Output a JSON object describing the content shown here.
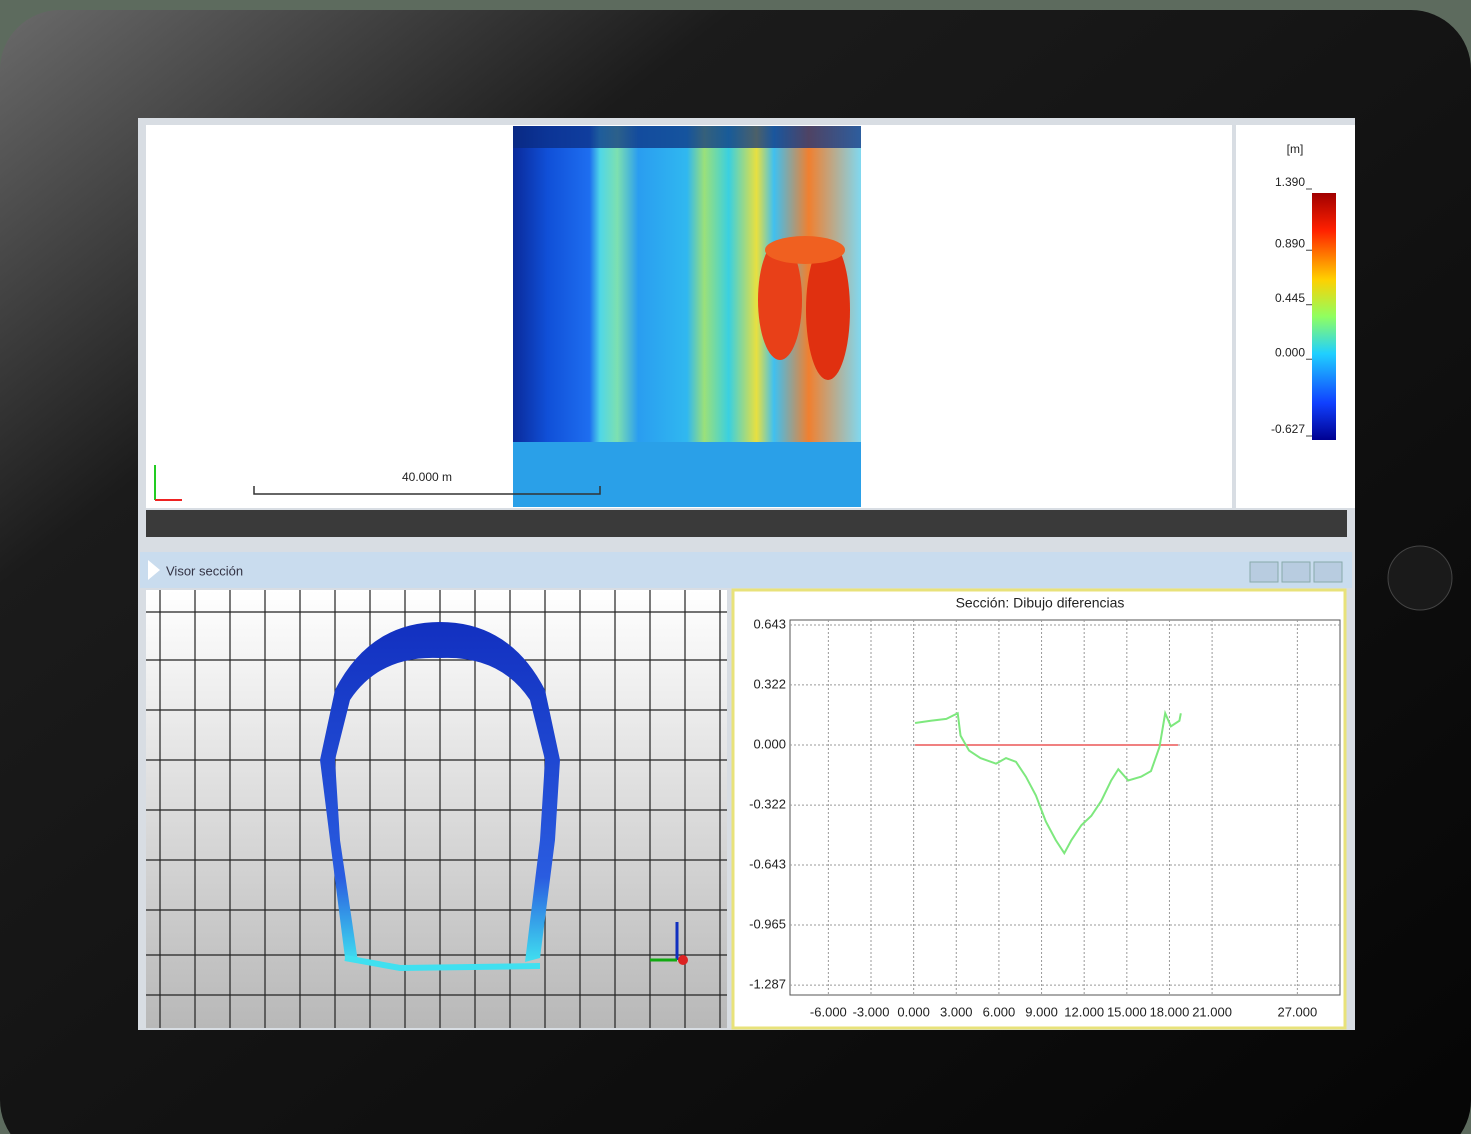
{
  "colorbar": {
    "unit": "[m]",
    "lim": [
      -0.627,
      1.39
    ],
    "ticks": [
      {
        "value": 1.39,
        "label": "1.390"
      },
      {
        "value": 0.89,
        "label": "0.890"
      },
      0.445,
      {
        "value": 0,
        "label": "0.000"
      },
      -0.627
    ]
  },
  "map_view": {
    "scale_bar": "40.000 m"
  },
  "section_viewer": {
    "title": "Visor sección"
  },
  "chart_data": {
    "type": "line",
    "title": "Sección: Dibujo diferencias",
    "xlim": [
      -8.7,
      30
    ],
    "ylim": [
      -1.34,
      0.67
    ],
    "xticks": [
      {
        "value": -6,
        "label": "-6.000"
      },
      {
        "value": -3,
        "label": "-3.000"
      },
      {
        "value": 0,
        "label": "0.000"
      },
      {
        "value": 3,
        "label": "3.000"
      },
      {
        "value": 6,
        "label": "6.000"
      },
      {
        "value": 9,
        "label": "9.000"
      },
      {
        "value": 12,
        "label": "12.000"
      },
      {
        "value": 15,
        "label": "15.000"
      },
      {
        "value": 18,
        "label": "18.000"
      },
      {
        "value": 21,
        "label": "21.000"
      },
      {
        "value": 27,
        "label": "27.000"
      }
    ],
    "yticks": [
      0.643,
      0.322,
      {
        "value": 0,
        "label": "0.000"
      },
      -0.322,
      -0.643,
      -0.965,
      -1.287
    ],
    "grid": true,
    "series": [
      {
        "color": "#7ee87e",
        "x": [
          0.1,
          1.2,
          2.3,
          3.1,
          3.3,
          3.9,
          4.7,
          5.8,
          6.5,
          7.2,
          7.9,
          8.6,
          9.3,
          10.0,
          10.6,
          11.1,
          11.8,
          12.5,
          13.2,
          13.9,
          14.4,
          15.1,
          16.0,
          16.7,
          17.3,
          17.7,
          18.1,
          18.7,
          18.8
        ],
        "values": [
          0.118,
          0.13,
          0.14,
          0.17,
          0.05,
          -0.03,
          -0.07,
          -0.1,
          -0.07,
          -0.09,
          -0.17,
          -0.27,
          -0.41,
          -0.51,
          -0.58,
          -0.51,
          -0.43,
          -0.38,
          -0.3,
          -0.19,
          -0.13,
          -0.19,
          -0.17,
          -0.14,
          -0.01,
          0.17,
          0.1,
          0.13,
          0.17
        ]
      },
      {
        "color": "#f08080",
        "x": [
          0.1,
          18.6
        ],
        "values": [
          0,
          0
        ]
      }
    ]
  }
}
